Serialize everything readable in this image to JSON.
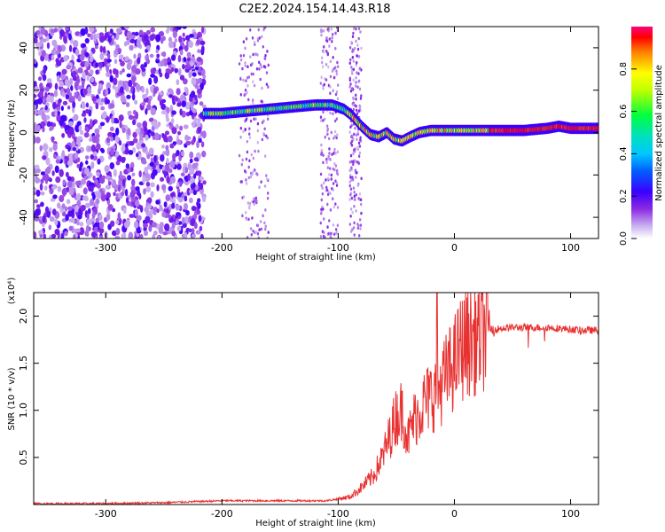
{
  "title": "C2E2.2024.154.14.43.R18",
  "colors": {
    "snr_line": "#e83232",
    "colormap": [
      "#ffffff",
      "#c9b0f0",
      "#8a2be2",
      "#5a00ff",
      "#0020ff",
      "#00a0ff",
      "#00e0e0",
      "#00ff60",
      "#b0ff00",
      "#ffff00",
      "#ff8000",
      "#ff0000",
      "#ff0080"
    ]
  },
  "chart_data": [
    {
      "type": "heatmap",
      "title": "C2E2.2024.154.14.43.R18",
      "xlabel": "Height of straight line (km)",
      "ylabel": "Frequency (Hz)",
      "xlim": [
        -362,
        124
      ],
      "ylim": [
        -50,
        50
      ],
      "x_ticks": [
        -300,
        -200,
        -100,
        0,
        100
      ],
      "y_ticks": [
        -40,
        -20,
        0,
        20,
        40
      ],
      "colorbar": {
        "label": "Normalized spectral amplitude",
        "range": [
          0,
          1
        ],
        "ticks": [
          "0.0",
          "0.2",
          "0.4",
          "0.6",
          "0.8"
        ]
      },
      "ridge": {
        "x": [
          -215,
          -200,
          -180,
          -160,
          -140,
          -120,
          -105,
          -95,
          -88,
          -80,
          -72,
          -65,
          -58,
          -52,
          -45,
          -38,
          -30,
          -20,
          -10,
          0,
          20,
          40,
          60,
          80,
          90,
          100,
          110,
          124
        ],
        "y": [
          9,
          9,
          10,
          11,
          12,
          13,
          13,
          11,
          8,
          3,
          -1,
          -2,
          0,
          -3,
          -4,
          -2,
          0,
          1,
          1,
          1,
          1,
          1,
          1,
          2,
          3,
          2,
          2,
          2
        ]
      },
      "noise_region_x": [
        -362,
        -215
      ]
    },
    {
      "type": "line",
      "title": "",
      "xlabel": "Height of straight line (km)",
      "ylabel": "SNR (10 * v/v)",
      "y_multiplier": "(x10⁴)",
      "xlim": [
        -362,
        124
      ],
      "ylim": [
        0,
        2.25
      ],
      "x_ticks": [
        -300,
        -200,
        -100,
        0,
        100
      ],
      "y_ticks": [
        "0.5",
        "1.0",
        "1.5",
        "2.0"
      ],
      "series": [
        {
          "x": [
            -362,
            -300,
            -250,
            -200,
            -150,
            -110,
            -90,
            -80,
            -70,
            -62,
            -55,
            -50,
            -45,
            -40,
            -35,
            -30,
            -25,
            -20,
            -15,
            -10,
            -5,
            0,
            5,
            10,
            15,
            20,
            25,
            30,
            35,
            40,
            50,
            60,
            70,
            80,
            90,
            100,
            110,
            124
          ],
          "y": [
            0.01,
            0.01,
            0.02,
            0.04,
            0.04,
            0.04,
            0.08,
            0.18,
            0.3,
            0.5,
            0.75,
            0.95,
            1.0,
            0.7,
            0.9,
            1.0,
            1.1,
            1.15,
            1.2,
            1.3,
            1.4,
            1.5,
            1.65,
            1.72,
            1.75,
            1.78,
            1.82,
            1.85,
            1.86,
            1.87,
            1.88,
            1.88,
            1.88,
            1.88,
            1.87,
            1.86,
            1.85,
            1.85
          ]
        }
      ]
    }
  ]
}
